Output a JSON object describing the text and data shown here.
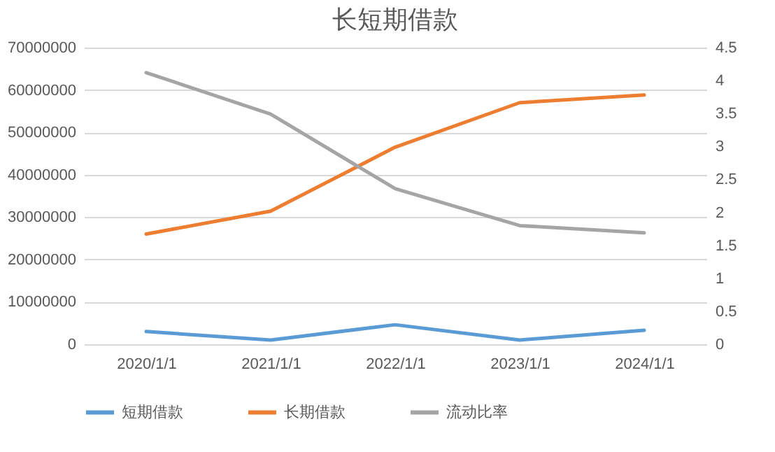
{
  "chart_data": {
    "type": "line",
    "title": "长短期借款",
    "categories": [
      "2020/1/1",
      "2021/1/1",
      "2022/1/1",
      "2023/1/1",
      "2024/1/1"
    ],
    "series": [
      {
        "name": "短期借款",
        "color": "#5b9bd5",
        "values": [
          3000000,
          1000000,
          4600000,
          1000000,
          3300000
        ]
      },
      {
        "name": "长期借款",
        "color": "#ed7d31",
        "values": [
          26000000,
          31400000,
          46500000,
          57000000,
          58800000
        ]
      },
      {
        "name": "流动比率",
        "color": "#a5a5a5",
        "axis": "y2",
        "values": [
          4.12,
          3.49,
          2.36,
          1.8,
          1.69
        ]
      }
    ],
    "ylim": [
      0,
      70000000
    ],
    "yticks": [
      0,
      10000000,
      20000000,
      30000000,
      40000000,
      50000000,
      60000000,
      70000000
    ],
    "y2lim": [
      0,
      4.5
    ],
    "y2ticks": [
      0,
      0.5,
      1,
      1.5,
      2,
      2.5,
      3,
      3.5,
      4,
      4.5
    ],
    "grid": "y",
    "legend": "bottom"
  }
}
